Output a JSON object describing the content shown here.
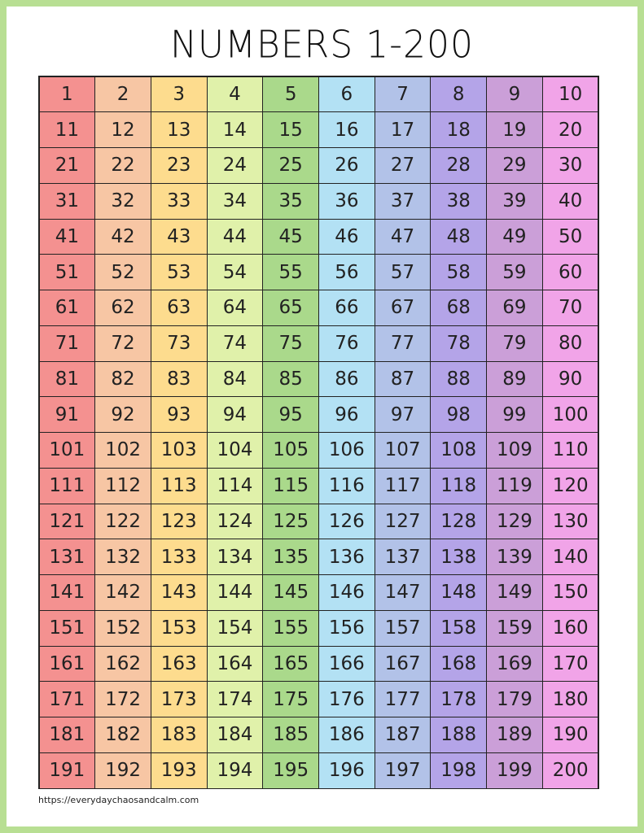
{
  "header": {
    "title": "NUMBERS 1-200"
  },
  "table": {
    "rows": [
      [
        1,
        2,
        3,
        4,
        5,
        6,
        7,
        8,
        9,
        10
      ],
      [
        11,
        12,
        13,
        14,
        15,
        16,
        17,
        18,
        19,
        20
      ],
      [
        21,
        22,
        23,
        24,
        25,
        26,
        27,
        28,
        29,
        30
      ],
      [
        31,
        32,
        33,
        34,
        35,
        36,
        37,
        38,
        39,
        40
      ],
      [
        41,
        42,
        43,
        44,
        45,
        46,
        47,
        48,
        49,
        50
      ],
      [
        51,
        52,
        53,
        54,
        55,
        56,
        57,
        58,
        59,
        60
      ],
      [
        61,
        62,
        63,
        64,
        65,
        66,
        67,
        68,
        69,
        70
      ],
      [
        71,
        72,
        73,
        74,
        75,
        76,
        77,
        78,
        79,
        80
      ],
      [
        81,
        82,
        83,
        84,
        85,
        86,
        87,
        88,
        89,
        90
      ],
      [
        91,
        92,
        93,
        94,
        95,
        96,
        97,
        98,
        99,
        100
      ],
      [
        101,
        102,
        103,
        104,
        105,
        106,
        107,
        108,
        109,
        110
      ],
      [
        111,
        112,
        113,
        114,
        115,
        116,
        117,
        118,
        119,
        120
      ],
      [
        121,
        122,
        123,
        124,
        125,
        126,
        127,
        128,
        129,
        130
      ],
      [
        131,
        132,
        133,
        134,
        135,
        136,
        137,
        138,
        139,
        140
      ],
      [
        141,
        142,
        143,
        144,
        145,
        146,
        147,
        148,
        149,
        150
      ],
      [
        151,
        152,
        153,
        154,
        155,
        156,
        157,
        158,
        159,
        160
      ],
      [
        161,
        162,
        163,
        164,
        165,
        166,
        167,
        168,
        169,
        170
      ],
      [
        171,
        172,
        173,
        174,
        175,
        176,
        177,
        178,
        179,
        180
      ],
      [
        181,
        182,
        183,
        184,
        185,
        186,
        187,
        188,
        189,
        190
      ],
      [
        191,
        192,
        193,
        194,
        195,
        196,
        197,
        198,
        199,
        200
      ]
    ]
  },
  "footer": {
    "url": "https://everydaychaosandcalm.com"
  }
}
